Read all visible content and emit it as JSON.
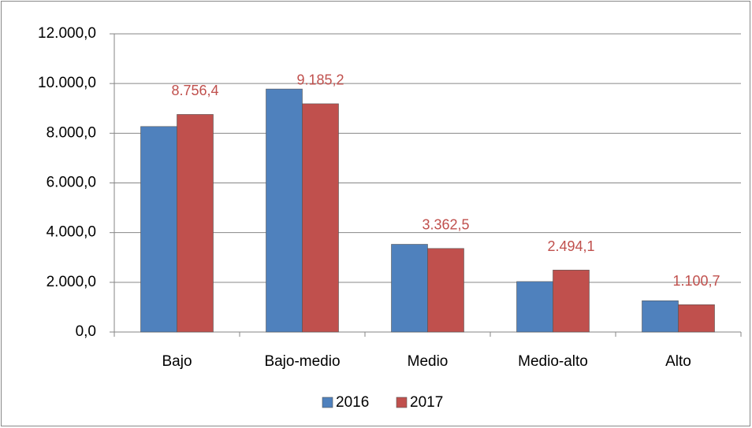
{
  "chart_data": {
    "type": "bar",
    "categories": [
      "Bajo",
      "Bajo-medio",
      "Medio",
      "Medio-alto",
      "Alto"
    ],
    "series": [
      {
        "name": "2016",
        "color": "#4f81bd",
        "values": [
          8270,
          9780,
          3530,
          2030,
          1260
        ]
      },
      {
        "name": "2017",
        "color": "#c0504d",
        "values": [
          8756.4,
          9185.2,
          3362.5,
          2494.1,
          1100.7
        ],
        "value_labels": [
          "8.756,4",
          "9.185,2",
          "3.362,5",
          "2.494,1",
          "1.100,7"
        ]
      }
    ],
    "ylim": [
      0,
      12000
    ],
    "yticks": [
      {
        "value": 0,
        "label": "0,0"
      },
      {
        "value": 2000,
        "label": "2.000,0"
      },
      {
        "value": 4000,
        "label": "4.000,0"
      },
      {
        "value": 6000,
        "label": "6.000,0"
      },
      {
        "value": 8000,
        "label": "8.000,0"
      },
      {
        "value": 10000,
        "label": "10.000,0"
      },
      {
        "value": 12000,
        "label": "12.000,0"
      }
    ],
    "grid": true,
    "legend": "bottom"
  }
}
